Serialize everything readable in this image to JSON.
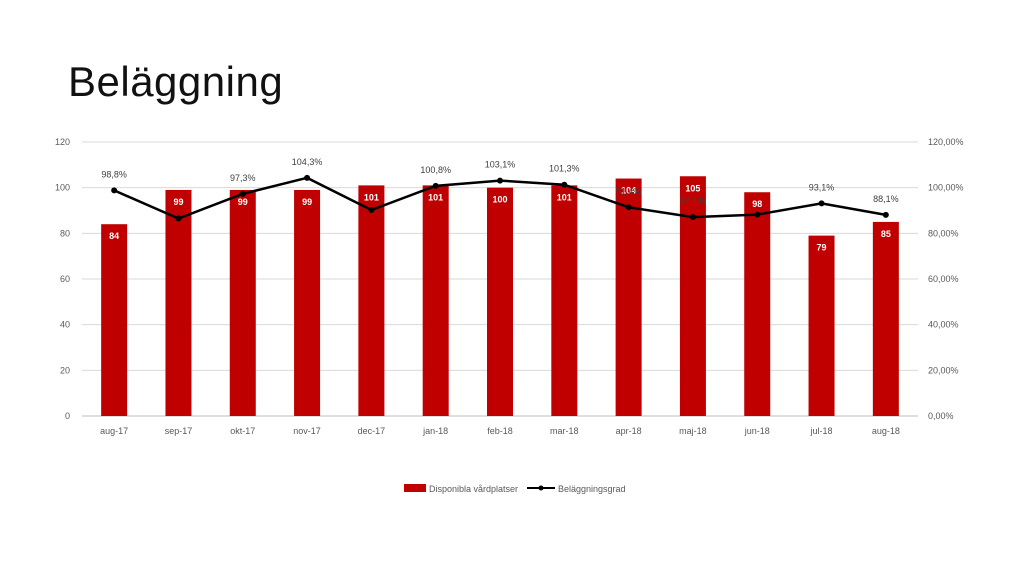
{
  "slide": {
    "title": "Beläggning"
  },
  "chart_data": {
    "type": "bar",
    "categories": [
      "aug-17",
      "sep-17",
      "okt-17",
      "nov-17",
      "dec-17",
      "jan-18",
      "feb-18",
      "mar-18",
      "apr-18",
      "maj-18",
      "jun-18",
      "jul-18",
      "aug-18"
    ],
    "series": [
      {
        "name": "Disponibla vårdplatser",
        "type": "bar",
        "axis": "left",
        "color": "#C00000",
        "values": [
          84,
          99,
          99,
          99,
          101,
          101,
          100,
          101,
          104,
          105,
          98,
          79,
          85
        ],
        "labels": [
          "84",
          "99",
          "99",
          "99",
          "101",
          "101",
          "100",
          "101",
          "104",
          "105",
          "98",
          "79",
          "85"
        ]
      },
      {
        "name": "Beläggningsgrad",
        "type": "line",
        "axis": "right",
        "color": "#000000",
        "values": [
          98.8,
          86.5,
          97.3,
          104.3,
          90.2,
          100.8,
          103.1,
          101.3,
          91.4,
          87.1,
          88.2,
          93.1,
          88.1
        ],
        "labels": [
          "98,8%",
          "",
          "97,3%",
          "104,3%",
          "",
          "100,8%",
          "103,1%",
          "101,3%",
          "91,4%",
          "87,1%",
          "",
          "93,1%",
          "88,1%"
        ]
      }
    ],
    "y_left": {
      "ylim": [
        0,
        120
      ],
      "ticks": [
        "0",
        "20",
        "40",
        "60",
        "80",
        "100",
        "120"
      ]
    },
    "y_right": {
      "ylim": [
        0,
        120
      ],
      "ticks": [
        "0,00%",
        "20,00%",
        "40,00%",
        "60,00%",
        "80,00%",
        "100,00%",
        "120,00%"
      ]
    },
    "grid": true,
    "legend_position": "bottom"
  }
}
